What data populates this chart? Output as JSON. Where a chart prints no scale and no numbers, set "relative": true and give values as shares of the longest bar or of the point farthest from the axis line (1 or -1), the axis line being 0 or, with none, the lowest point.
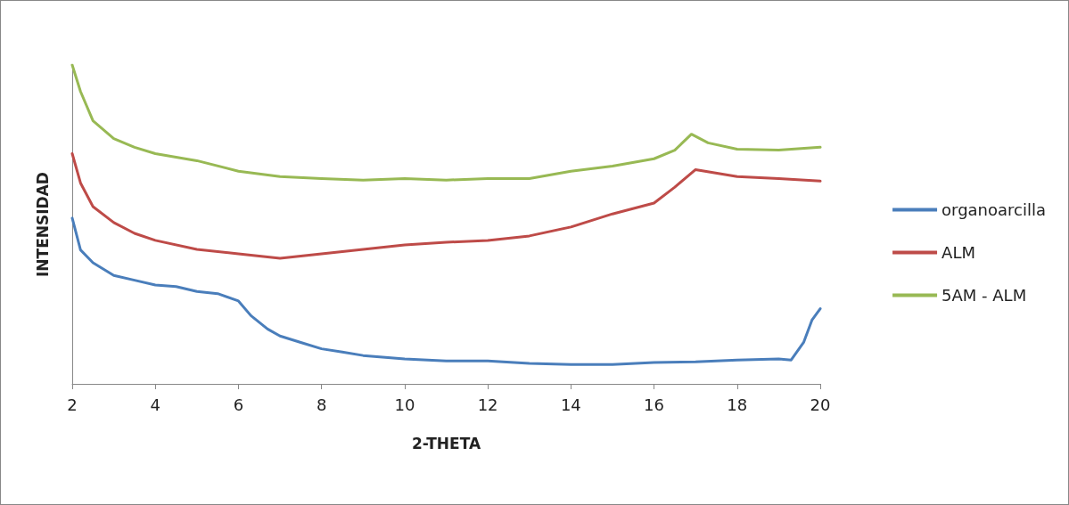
{
  "chart_data": {
    "type": "line",
    "xlabel": "2-THETA",
    "ylabel": "INTENSIDAD",
    "relative": true,
    "xlim": [
      2,
      20
    ],
    "xticks": [
      2,
      4,
      6,
      8,
      10,
      12,
      14,
      16,
      18,
      20
    ],
    "grid": false,
    "legend": "right",
    "marker": "none",
    "line_style": "solid",
    "series": [
      {
        "name": "organoarcilla",
        "color": "#4a7ebb",
        "x": [
          2,
          2.2,
          2.5,
          3,
          3.5,
          4,
          4.5,
          5,
          5.5,
          6,
          6.3,
          6.7,
          7,
          7.5,
          8,
          8.5,
          9,
          10,
          11,
          12,
          13,
          14,
          15,
          16,
          17,
          18,
          19,
          19.3,
          19.6,
          19.8,
          20
        ],
        "values": [
          0.52,
          0.42,
          0.38,
          0.34,
          0.325,
          0.31,
          0.305,
          0.29,
          0.283,
          0.26,
          0.214,
          0.172,
          0.15,
          0.13,
          0.11,
          0.1,
          0.089,
          0.078,
          0.072,
          0.072,
          0.064,
          0.061,
          0.061,
          0.067,
          0.069,
          0.075,
          0.078,
          0.075,
          0.13,
          0.2,
          0.236
        ]
      },
      {
        "name": "ALM",
        "color": "#be4b48",
        "x": [
          2,
          2.2,
          2.5,
          3,
          3.5,
          4,
          5,
          6,
          7,
          8,
          9,
          10,
          11,
          12,
          13,
          14,
          15,
          16,
          16.5,
          17,
          18,
          19,
          20
        ],
        "values": [
          0.722,
          0.63,
          0.556,
          0.506,
          0.472,
          0.45,
          0.422,
          0.408,
          0.394,
          0.408,
          0.422,
          0.436,
          0.444,
          0.45,
          0.464,
          0.492,
          0.533,
          0.567,
          0.617,
          0.672,
          0.65,
          0.644,
          0.636
        ]
      },
      {
        "name": "5AM - ALM",
        "color": "#98b954",
        "x": [
          2,
          2.2,
          2.5,
          3,
          3.5,
          4,
          5,
          6,
          7,
          8,
          9,
          10,
          11,
          12,
          13,
          14,
          15,
          16,
          16.5,
          16.9,
          17.3,
          18,
          19,
          20
        ],
        "values": [
          1,
          0.917,
          0.825,
          0.769,
          0.742,
          0.722,
          0.7,
          0.667,
          0.65,
          0.644,
          0.639,
          0.644,
          0.639,
          0.644,
          0.644,
          0.667,
          0.683,
          0.706,
          0.733,
          0.783,
          0.756,
          0.736,
          0.733,
          0.742
        ]
      }
    ]
  }
}
